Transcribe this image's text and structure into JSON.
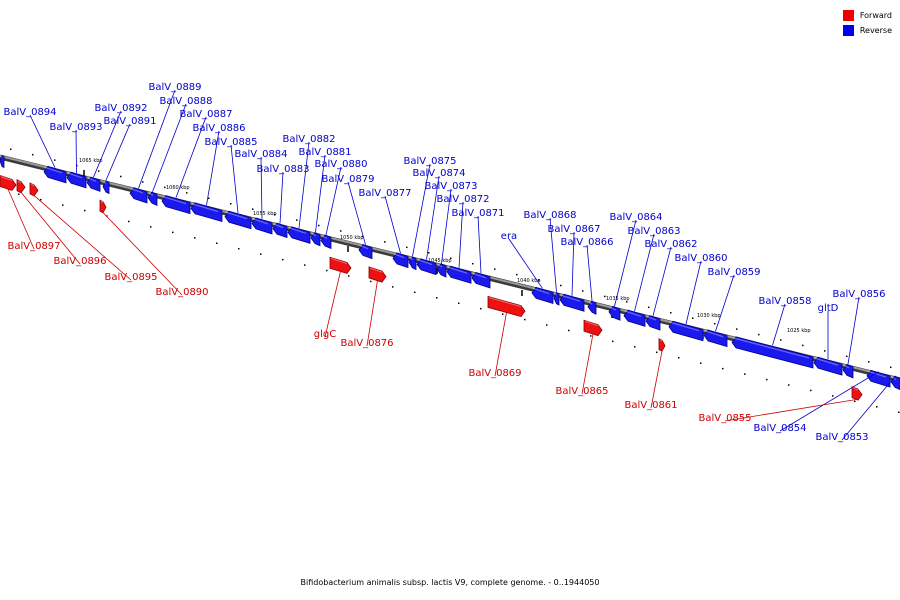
{
  "caption": "Bifidobacterium animalis subsp. lactis V9, complete genome. - 0..1944050",
  "legend": {
    "forward_label": "Forward",
    "reverse_label": "Reverse",
    "forward_color": "#ee0000",
    "reverse_color": "#0000ee"
  },
  "ticks": [
    "1065 kbp",
    "1060 kbp",
    "1055 kbp",
    "1050 kbp",
    "1045 kbp",
    "1040 kbp",
    "1035 kbp",
    "1030 kbp",
    "1025 kbp"
  ],
  "reverse_genes": [
    "BalV_0894",
    "BalV_0893",
    "BalV_0892",
    "BalV_0891",
    "BalV_0889",
    "BalV_0888",
    "BalV_0887",
    "BalV_0886",
    "BalV_0885",
    "BalV_0884",
    "BalV_0883",
    "BalV_0882",
    "BalV_0881",
    "BalV_0880",
    "BalV_0879",
    "BalV_0877",
    "BalV_0875",
    "BalV_0874",
    "BalV_0873",
    "BalV_0872",
    "BalV_0871",
    "era",
    "BalV_0868",
    "BalV_0867",
    "BalV_0866",
    "BalV_0864",
    "BalV_0863",
    "BalV_0862",
    "BalV_0860",
    "BalV_0859",
    "BalV_0858",
    "gltD",
    "BalV_0856",
    "BalV_0854",
    "BalV_0853"
  ],
  "forward_genes": [
    "BalV_0897",
    "BalV_0896",
    "BalV_0895",
    "BalV_0890",
    "glgC",
    "BalV_0876",
    "BalV_0869",
    "BalV_0865",
    "BalV_0861",
    "BalV_0855"
  ]
}
